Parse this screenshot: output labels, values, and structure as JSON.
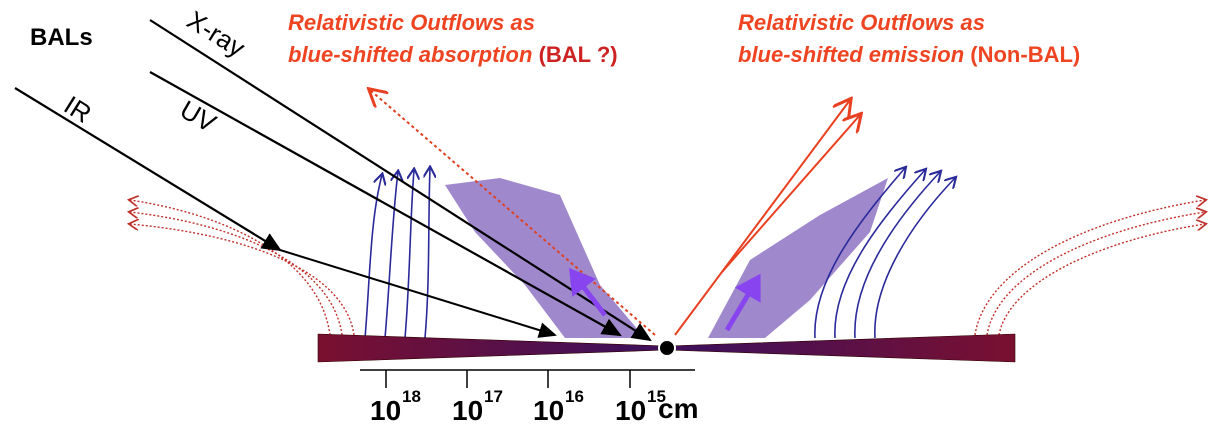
{
  "header": {
    "label": "BALs"
  },
  "rays": {
    "xray": "X-ray",
    "ir": "IR",
    "uv": "UV"
  },
  "left_caption": {
    "line1": "Relativistic Outflows as",
    "line2": "blue-shifted absorption",
    "tag": "(BAL ?)"
  },
  "right_caption": {
    "line1": "Relativistic Outflows as",
    "line2": "blue-shifted emission",
    "tag": "(Non-BAL)"
  },
  "scale": {
    "ticks": [
      {
        "base": "10",
        "exp": "18"
      },
      {
        "base": "10",
        "exp": "17"
      },
      {
        "base": "10",
        "exp": "16"
      },
      {
        "base": "10",
        "exp": "15"
      }
    ],
    "unit": "cm"
  }
}
